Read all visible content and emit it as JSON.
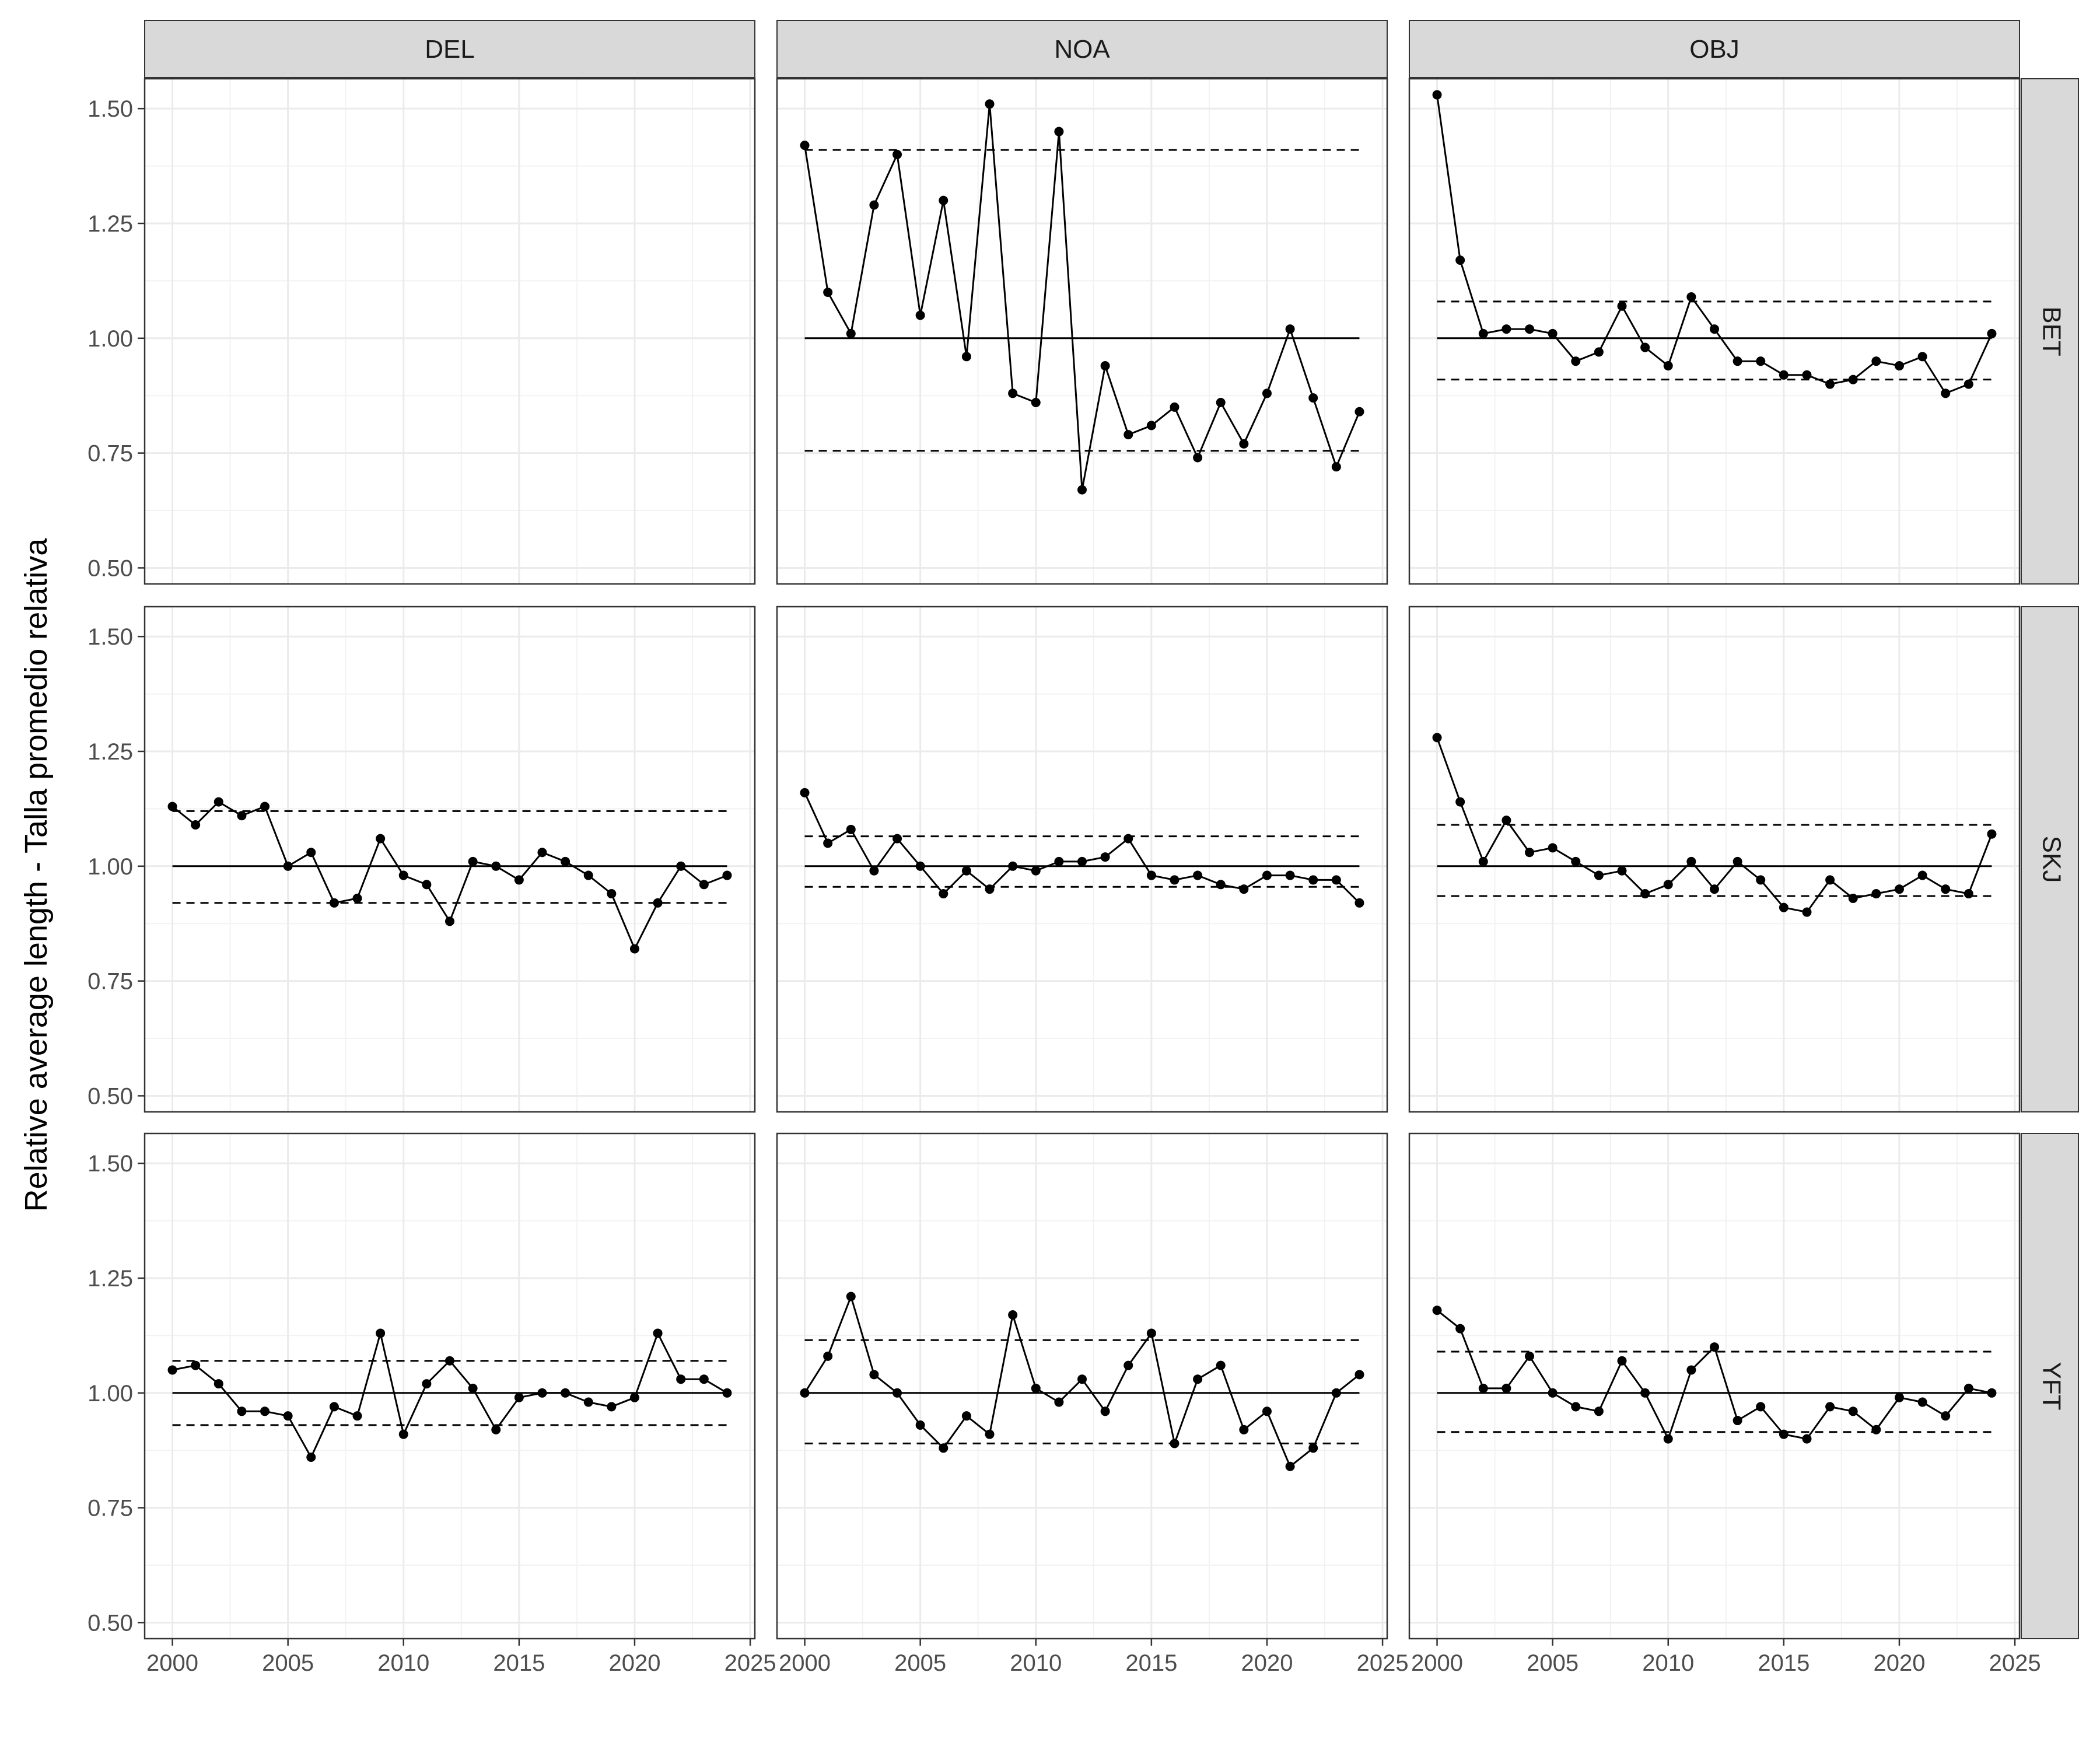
{
  "chart_data": {
    "type": "line",
    "ylabel": "Relative average length - Talla promedio relativa",
    "xlabel": "",
    "xlim": [
      1998.8,
      2025.2
    ],
    "ylim": [
      0.465,
      1.565
    ],
    "x_ticks": [
      2000,
      2005,
      2010,
      2015,
      2020,
      2025
    ],
    "x_tick_labels": [
      "2000",
      "2005",
      "2010",
      "2015",
      "2020",
      "2025"
    ],
    "y_ticks": [
      0.5,
      0.75,
      1.0,
      1.25,
      1.5
    ],
    "y_tick_labels": [
      "0.50",
      "0.75",
      "1.00",
      "1.25",
      "1.50"
    ],
    "grid": true,
    "columns": [
      "DEL",
      "NOA",
      "OBJ"
    ],
    "rows": [
      "BET",
      "SKJ",
      "YFT"
    ],
    "years": [
      2000,
      2001,
      2002,
      2003,
      2004,
      2005,
      2006,
      2007,
      2008,
      2009,
      2010,
      2011,
      2012,
      2013,
      2014,
      2015,
      2016,
      2017,
      2018,
      2019,
      2020,
      2021,
      2022,
      2023,
      2024
    ],
    "panels": [
      {
        "row": "BET",
        "col": "DEL",
        "values": [],
        "upper": null,
        "lower": null
      },
      {
        "row": "BET",
        "col": "NOA",
        "values": [
          1.42,
          1.1,
          1.01,
          1.29,
          1.4,
          1.05,
          1.3,
          0.96,
          1.51,
          0.88,
          0.86,
          1.45,
          0.67,
          0.94,
          0.79,
          0.81,
          0.85,
          0.74,
          0.86,
          0.77,
          0.88,
          1.02,
          0.87,
          0.72,
          0.84
        ],
        "upper": 1.41,
        "lower": 0.755
      },
      {
        "row": "BET",
        "col": "OBJ",
        "values": [
          1.53,
          1.17,
          1.01,
          1.02,
          1.02,
          1.01,
          0.95,
          0.97,
          1.07,
          0.98,
          0.94,
          1.09,
          1.02,
          0.95,
          0.95,
          0.92,
          0.92,
          0.9,
          0.91,
          0.95,
          0.94,
          0.96,
          0.88,
          0.9,
          1.01
        ],
        "upper": 1.08,
        "lower": 0.91
      },
      {
        "row": "SKJ",
        "col": "DEL",
        "values": [
          1.13,
          1.09,
          1.14,
          1.11,
          1.13,
          1.0,
          1.03,
          0.92,
          0.93,
          1.06,
          0.98,
          0.96,
          0.88,
          1.01,
          1.0,
          0.97,
          1.03,
          1.01,
          0.98,
          0.94,
          0.82,
          0.92,
          1.0,
          0.96,
          0.98
        ],
        "upper": 1.12,
        "lower": 0.92
      },
      {
        "row": "SKJ",
        "col": "NOA",
        "values": [
          1.16,
          1.05,
          1.08,
          0.99,
          1.06,
          1.0,
          0.94,
          0.99,
          0.95,
          1.0,
          0.99,
          1.01,
          1.01,
          1.02,
          1.06,
          0.98,
          0.97,
          0.98,
          0.96,
          0.95,
          0.98,
          0.98,
          0.97,
          0.97,
          0.92
        ],
        "upper": 1.065,
        "lower": 0.955
      },
      {
        "row": "SKJ",
        "col": "OBJ",
        "values": [
          1.28,
          1.14,
          1.01,
          1.1,
          1.03,
          1.04,
          1.01,
          0.98,
          0.99,
          0.94,
          0.96,
          1.01,
          0.95,
          1.01,
          0.97,
          0.91,
          0.9,
          0.97,
          0.93,
          0.94,
          0.95,
          0.98,
          0.95,
          0.94,
          1.07
        ],
        "upper": 1.09,
        "lower": 0.935
      },
      {
        "row": "YFT",
        "col": "DEL",
        "values": [
          1.05,
          1.06,
          1.02,
          0.96,
          0.96,
          0.95,
          0.86,
          0.97,
          0.95,
          1.13,
          0.91,
          1.02,
          1.07,
          1.01,
          0.92,
          0.99,
          1.0,
          1.0,
          0.98,
          0.97,
          0.99,
          1.13,
          1.03,
          1.03,
          1.0
        ],
        "upper": 1.07,
        "lower": 0.93
      },
      {
        "row": "YFT",
        "col": "NOA",
        "values": [
          1.0,
          1.08,
          1.21,
          1.04,
          1.0,
          0.93,
          0.88,
          0.95,
          0.91,
          1.17,
          1.01,
          0.98,
          1.03,
          0.96,
          1.06,
          1.13,
          0.89,
          1.03,
          1.06,
          0.92,
          0.96,
          0.84,
          0.88,
          1.0,
          1.04
        ],
        "upper": 1.115,
        "lower": 0.89
      },
      {
        "row": "YFT",
        "col": "OBJ",
        "values": [
          1.18,
          1.14,
          1.01,
          1.01,
          1.08,
          1.0,
          0.97,
          0.96,
          1.07,
          1.0,
          0.9,
          1.05,
          1.1,
          0.94,
          0.97,
          0.91,
          0.9,
          0.97,
          0.96,
          0.92,
          0.99,
          0.98,
          0.95,
          1.01,
          1.0
        ],
        "upper": 1.09,
        "lower": 0.915
      }
    ]
  }
}
